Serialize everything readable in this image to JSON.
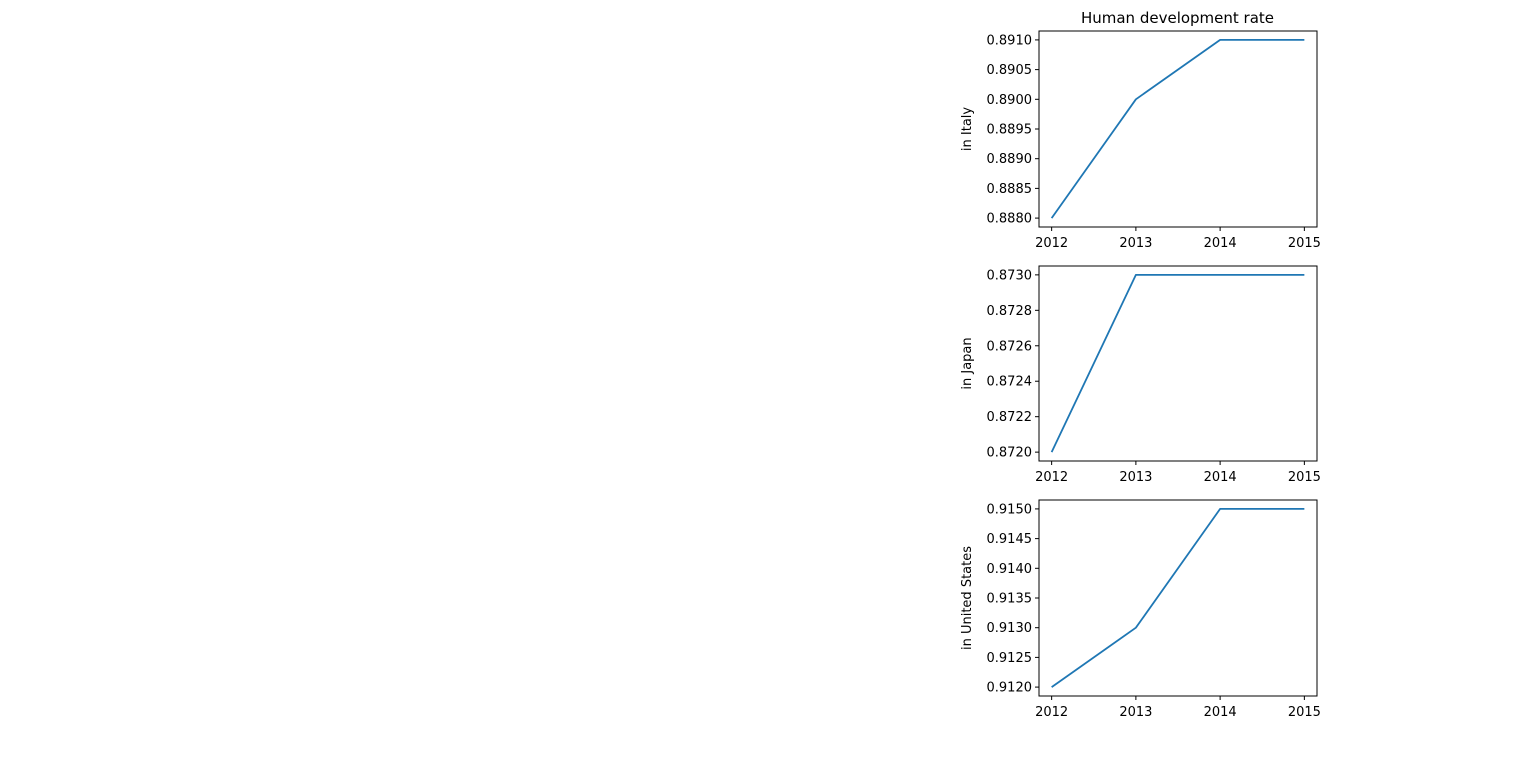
{
  "figure": {
    "title": "Human development rate"
  },
  "colors": {
    "line": "#1f77b4",
    "axes": "#000000",
    "background": "#ffffff"
  },
  "chart_data": [
    {
      "type": "line",
      "title": "Human development rate",
      "xlabel": "",
      "ylabel": "in Italy",
      "x": [
        2012,
        2013,
        2014,
        2015
      ],
      "series": [
        {
          "values": [
            0.888,
            0.89,
            0.891,
            0.891
          ]
        }
      ],
      "xticks": [
        "2012",
        "2013",
        "2014",
        "2015"
      ],
      "yticks": [
        "0.8880",
        "0.8885",
        "0.8890",
        "0.8895",
        "0.8900",
        "0.8905",
        "0.8910"
      ],
      "ylim": [
        0.88785,
        0.89115
      ],
      "grid": false
    },
    {
      "type": "line",
      "title": "",
      "xlabel": "",
      "ylabel": "in Japan",
      "x": [
        2012,
        2013,
        2014,
        2015
      ],
      "series": [
        {
          "values": [
            0.872,
            0.873,
            0.873,
            0.873
          ]
        }
      ],
      "xticks": [
        "2012",
        "2013",
        "2014",
        "2015"
      ],
      "yticks": [
        "0.8720",
        "0.8722",
        "0.8724",
        "0.8726",
        "0.8728",
        "0.8730"
      ],
      "ylim": [
        0.87195,
        0.87305
      ],
      "grid": false
    },
    {
      "type": "line",
      "title": "",
      "xlabel": "",
      "ylabel": "in United States",
      "x": [
        2012,
        2013,
        2014,
        2015
      ],
      "series": [
        {
          "values": [
            0.912,
            0.913,
            0.915,
            0.915
          ]
        }
      ],
      "xticks": [
        "2012",
        "2013",
        "2014",
        "2015"
      ],
      "yticks": [
        "0.9120",
        "0.9125",
        "0.9130",
        "0.9135",
        "0.9140",
        "0.9145",
        "0.9150"
      ],
      "ylim": [
        0.91185,
        0.91515
      ],
      "grid": false
    }
  ]
}
